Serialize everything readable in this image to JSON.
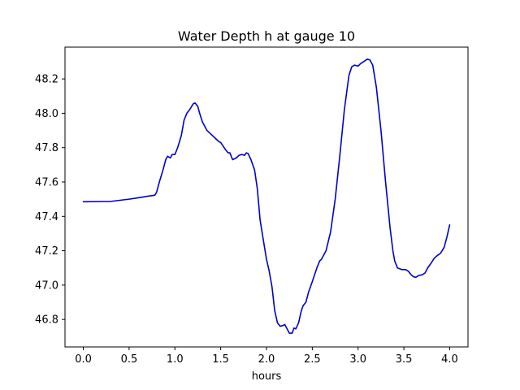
{
  "chart_data": {
    "type": "line",
    "title": "Water Depth h at gauge 10",
    "xlabel": "hours",
    "ylabel": "",
    "xlim": [
      -0.2,
      4.2
    ],
    "ylim": [
      46.64,
      48.385
    ],
    "xticks": [
      0.0,
      0.5,
      1.0,
      1.5,
      2.0,
      2.5,
      3.0,
      3.5,
      4.0
    ],
    "xtick_labels": [
      "0.0",
      "0.5",
      "1.0",
      "1.5",
      "2.0",
      "2.5",
      "3.0",
      "3.5",
      "4.0"
    ],
    "yticks": [
      46.8,
      47.0,
      47.2,
      47.4,
      47.6,
      47.8,
      48.0,
      48.2
    ],
    "ytick_labels": [
      "46.8",
      "47.0",
      "47.2",
      "47.4",
      "47.6",
      "47.8",
      "48.0",
      "48.2"
    ],
    "grid": false,
    "series": [
      {
        "color": "#0000cc",
        "x": [
          0.0,
          0.3,
          0.5,
          0.6,
          0.7,
          0.78,
          0.8,
          0.83,
          0.87,
          0.9,
          0.92,
          0.95,
          0.97,
          1.0,
          1.03,
          1.07,
          1.1,
          1.13,
          1.16,
          1.2,
          1.22,
          1.25,
          1.27,
          1.3,
          1.35,
          1.4,
          1.45,
          1.48,
          1.5,
          1.55,
          1.58,
          1.6,
          1.63,
          1.67,
          1.7,
          1.73,
          1.76,
          1.78,
          1.8,
          1.83,
          1.87,
          1.9,
          1.93,
          1.96,
          2.0,
          2.03,
          2.06,
          2.09,
          2.12,
          2.15,
          2.18,
          2.2,
          2.23,
          2.25,
          2.28,
          2.3,
          2.32,
          2.35,
          2.38,
          2.4,
          2.43,
          2.46,
          2.5,
          2.55,
          2.58,
          2.6,
          2.65,
          2.7,
          2.75,
          2.8,
          2.85,
          2.9,
          2.93,
          2.96,
          3.0,
          3.03,
          3.06,
          3.1,
          3.13,
          3.16,
          3.2,
          3.25,
          3.3,
          3.35,
          3.38,
          3.4,
          3.43,
          3.48,
          3.52,
          3.55,
          3.58,
          3.6,
          3.63,
          3.66,
          3.7,
          3.73,
          3.76,
          3.8,
          3.83,
          3.86,
          3.9,
          3.94,
          3.97,
          4.0
        ],
        "y": [
          47.485,
          47.487,
          47.5,
          47.508,
          47.517,
          47.523,
          47.54,
          47.6,
          47.67,
          47.73,
          47.75,
          47.74,
          47.76,
          47.76,
          47.8,
          47.87,
          47.96,
          48.0,
          48.02,
          48.055,
          48.06,
          48.04,
          48.0,
          47.95,
          47.9,
          47.875,
          47.85,
          47.835,
          47.83,
          47.79,
          47.77,
          47.77,
          47.73,
          47.74,
          47.755,
          47.76,
          47.755,
          47.77,
          47.765,
          47.73,
          47.67,
          47.56,
          47.38,
          47.28,
          47.15,
          47.08,
          46.99,
          46.85,
          46.78,
          46.76,
          46.765,
          46.77,
          46.74,
          46.72,
          46.72,
          46.75,
          46.745,
          46.78,
          46.85,
          46.88,
          46.9,
          46.96,
          47.02,
          47.1,
          47.14,
          47.15,
          47.2,
          47.31,
          47.5,
          47.75,
          48.02,
          48.22,
          48.27,
          48.28,
          48.275,
          48.29,
          48.3,
          48.315,
          48.31,
          48.28,
          48.15,
          47.9,
          47.6,
          47.33,
          47.2,
          47.14,
          47.1,
          47.09,
          47.09,
          47.08,
          47.06,
          47.05,
          47.045,
          47.055,
          47.06,
          47.07,
          47.1,
          47.13,
          47.155,
          47.17,
          47.185,
          47.22,
          47.28,
          47.35
        ]
      }
    ]
  }
}
